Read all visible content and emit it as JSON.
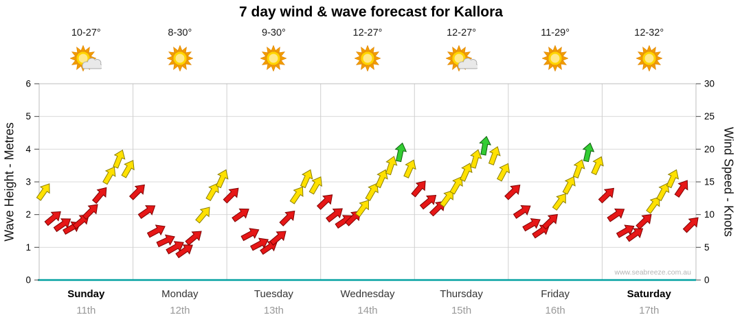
{
  "title": "7 day wind & wave forecast for Kallora",
  "watermark": "www.seabreeze.com.au",
  "axes": {
    "left_label": "Wave Height - Metres",
    "right_label": "Wind Speed - Knots",
    "left_ticks": [
      0,
      1,
      2,
      3,
      4,
      5,
      6
    ],
    "right_ticks": [
      0,
      5,
      10,
      15,
      20,
      25,
      30
    ]
  },
  "days": [
    {
      "name": "Sunday",
      "date": "11th",
      "temp": "10-27°",
      "icon": "sun-cloud",
      "bold": true
    },
    {
      "name": "Monday",
      "date": "12th",
      "temp": "8-30°",
      "icon": "sun",
      "bold": false
    },
    {
      "name": "Tuesday",
      "date": "13th",
      "temp": "9-30°",
      "icon": "sun",
      "bold": false
    },
    {
      "name": "Wednesday",
      "date": "14th",
      "temp": "12-27°",
      "icon": "sun",
      "bold": false
    },
    {
      "name": "Thursday",
      "date": "15th",
      "temp": "12-27°",
      "icon": "sun-cloud",
      "bold": false
    },
    {
      "name": "Friday",
      "date": "16th",
      "temp": "11-29°",
      "icon": "sun",
      "bold": false
    },
    {
      "name": "Saturday",
      "date": "17th",
      "temp": "12-32°",
      "icon": "sun",
      "bold": true
    }
  ],
  "chart_data": {
    "type": "wind-arrows",
    "ylim_left_metres": [
      0,
      6
    ],
    "ylim_right_knots": [
      0,
      30
    ],
    "points_per_day": 10,
    "colors": {
      "R": "#e61717",
      "Y": "#ffe100",
      "G": "#33cc33"
    },
    "point_format": [
      "knots",
      "color",
      "dir_deg_clockwise_from_up"
    ],
    "points": [
      [
        13.5,
        "Y",
        35
      ],
      [
        9.5,
        "R",
        50
      ],
      [
        8.5,
        "R",
        55
      ],
      [
        8,
        "R",
        60
      ],
      [
        9,
        "R",
        50
      ],
      [
        10.5,
        "R",
        45
      ],
      [
        13,
        "R",
        40
      ],
      [
        16,
        "Y",
        30
      ],
      [
        18.5,
        "Y",
        22
      ],
      [
        17,
        "Y",
        30
      ],
      [
        13.5,
        "R",
        45
      ],
      [
        10.5,
        "R",
        55
      ],
      [
        7.5,
        "R",
        62
      ],
      [
        6,
        "R",
        65
      ],
      [
        5,
        "R",
        60
      ],
      [
        4.5,
        "R",
        55
      ],
      [
        6.5,
        "R",
        50
      ],
      [
        10,
        "Y",
        40
      ],
      [
        13.5,
        "Y",
        30
      ],
      [
        15.5,
        "Y",
        24
      ],
      [
        13,
        "R",
        45
      ],
      [
        10,
        "R",
        55
      ],
      [
        7,
        "R",
        62
      ],
      [
        5.5,
        "R",
        62
      ],
      [
        5,
        "R",
        56
      ],
      [
        6.5,
        "R",
        50
      ],
      [
        9.5,
        "R",
        45
      ],
      [
        13,
        "Y",
        34
      ],
      [
        15.5,
        "Y",
        24
      ],
      [
        14.5,
        "Y",
        30
      ],
      [
        12,
        "R",
        46
      ],
      [
        10,
        "R",
        52
      ],
      [
        9,
        "R",
        56
      ],
      [
        9.5,
        "R",
        46
      ],
      [
        11,
        "Y",
        36
      ],
      [
        13.5,
        "Y",
        30
      ],
      [
        15.5,
        "Y",
        24
      ],
      [
        17.5,
        "Y",
        18
      ],
      [
        19.5,
        "G",
        12
      ],
      [
        17,
        "Y",
        24
      ],
      [
        14,
        "R",
        40
      ],
      [
        12,
        "R",
        50
      ],
      [
        11,
        "R",
        46
      ],
      [
        12.5,
        "Y",
        36
      ],
      [
        14.5,
        "Y",
        30
      ],
      [
        16.5,
        "Y",
        24
      ],
      [
        18.5,
        "Y",
        16
      ],
      [
        20.5,
        "G",
        10
      ],
      [
        19,
        "Y",
        20
      ],
      [
        16.5,
        "Y",
        28
      ],
      [
        13.5,
        "R",
        46
      ],
      [
        10.5,
        "R",
        56
      ],
      [
        8.5,
        "R",
        60
      ],
      [
        7.5,
        "R",
        56
      ],
      [
        9,
        "R",
        46
      ],
      [
        12,
        "Y",
        36
      ],
      [
        14.5,
        "Y",
        28
      ],
      [
        17,
        "Y",
        20
      ],
      [
        19.5,
        "G",
        13
      ],
      [
        17.5,
        "Y",
        24
      ],
      [
        13,
        "R",
        46
      ],
      [
        10,
        "R",
        56
      ],
      [
        7.5,
        "R",
        60
      ],
      [
        7,
        "R",
        54
      ],
      [
        9,
        "R",
        46
      ],
      [
        11.5,
        "Y",
        36
      ],
      [
        13.5,
        "Y",
        28
      ],
      [
        15.5,
        "Y",
        24
      ],
      [
        14,
        "R",
        34
      ],
      [
        8.5,
        "R",
        45
      ]
    ]
  }
}
